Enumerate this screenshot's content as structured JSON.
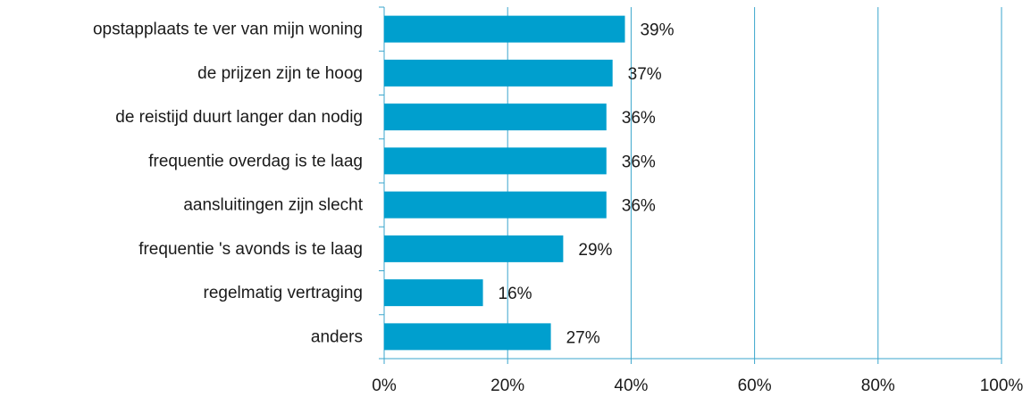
{
  "chart_data": {
    "type": "hbar",
    "categories": [
      "opstapplaats te ver van mijn woning",
      "de prijzen zijn te hoog",
      "de reistijd duurt langer dan nodig",
      "frequentie overdag is te laag",
      "aansluitingen zijn slecht",
      "frequentie 's avonds is te laag",
      "regelmatig vertraging",
      "anders"
    ],
    "values": [
      39,
      37,
      36,
      36,
      36,
      29,
      16,
      27
    ],
    "value_labels": [
      "39%",
      "37%",
      "36%",
      "36%",
      "36%",
      "29%",
      "16%",
      "27%"
    ],
    "color": "#009fce",
    "xlim": [
      0,
      100
    ],
    "xticks": [
      {
        "value": 0,
        "label": "0%"
      },
      {
        "value": 20,
        "label": "20%"
      },
      {
        "value": 40,
        "label": "40%"
      },
      {
        "value": 60,
        "label": "60%"
      },
      {
        "value": 80,
        "label": "80%"
      },
      {
        "value": 100,
        "label": "100%"
      }
    ],
    "grid": true,
    "grid_color": "#3aa6cc"
  }
}
